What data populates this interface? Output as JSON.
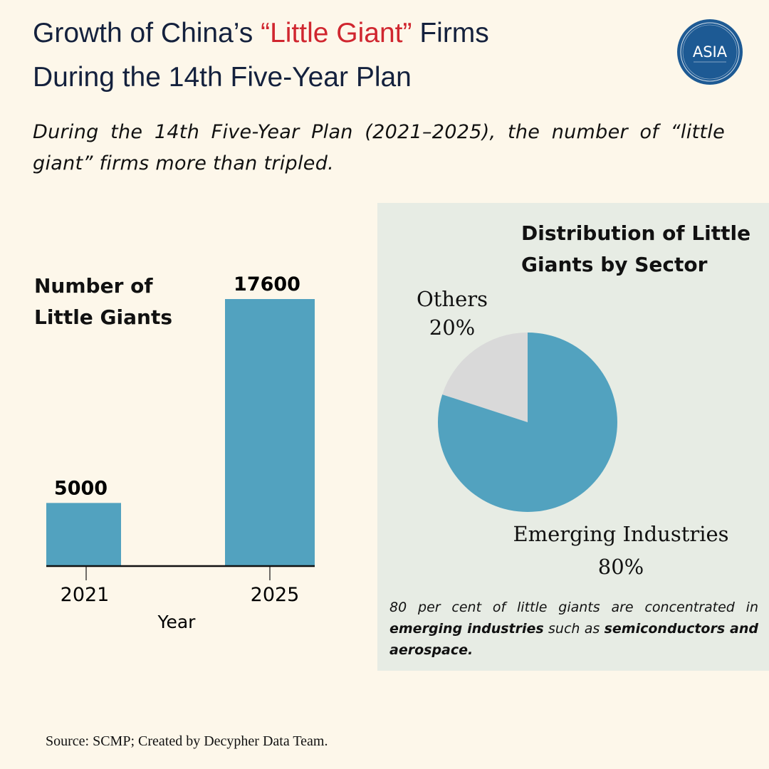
{
  "title": {
    "line1_pre": "Growth of China’s ",
    "line1_highlight": "“Little Giant”",
    "line1_post": " Firms",
    "line2": "During the 14th Five-Year Plan"
  },
  "logo": {
    "text": "ASIA"
  },
  "subtitle": "During the 14th Five-Year Plan (2021–2025), the number of “little giant” firms more than tripled.",
  "colors": {
    "bar": "#52a2bf",
    "others": "#d9d9d9",
    "accent": "#d0262f",
    "logo": "#1d5a94"
  },
  "chart_data": [
    {
      "type": "bar",
      "title": "Number of Little Giants",
      "categories": [
        "2021",
        "2025"
      ],
      "values": [
        5000,
        17600
      ],
      "data_labels": [
        "5000",
        "17600"
      ],
      "xlabel": "Year",
      "ylabel": "",
      "ylim": [
        1100,
        17600
      ]
    },
    {
      "type": "pie",
      "title": "Distribution of Little Giants by Sector",
      "slices": [
        {
          "name": "Others",
          "value": 20,
          "label": "20%"
        },
        {
          "name": "Emerging Industries",
          "value": 80,
          "label": "80%"
        }
      ]
    }
  ],
  "note": {
    "p1": "80 per cent of little giants are concentrated in ",
    "b1": "emerging industries",
    "p2": " such as ",
    "b2": "semiconductors and aerospace."
  },
  "source": "Source: SCMP; Created by Decypher Data Team."
}
